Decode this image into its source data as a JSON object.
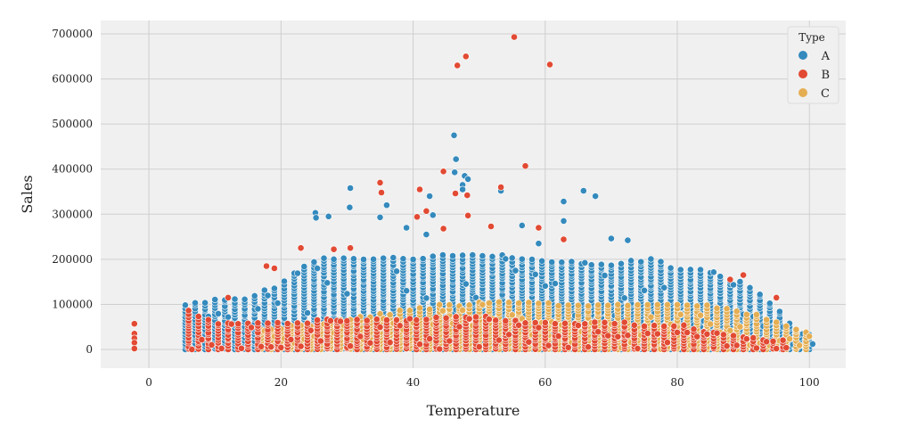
{
  "chart_data": {
    "type": "scatter",
    "xlabel": "Temperature",
    "ylabel": "Sales",
    "xlim": [
      -7.3,
      105.5
    ],
    "ylim": [
      -41500,
      729700
    ],
    "xticks": [
      0,
      20,
      40,
      60,
      80,
      100
    ],
    "xtick_labels": [
      "0",
      "20",
      "40",
      "60",
      "80",
      "100"
    ],
    "yticks": [
      0,
      100000,
      200000,
      300000,
      400000,
      500000,
      600000,
      700000
    ],
    "ytick_labels": [
      "0",
      "100000",
      "200000",
      "300000",
      "400000",
      "500000",
      "600000",
      "700000"
    ],
    "grid": true,
    "legend": {
      "title": "Type",
      "placement": "top-right"
    },
    "series": [
      {
        "name": "A",
        "color": "#348ABD",
        "column_step": 1.5,
        "envelope": [
          [
            5.5,
            100000
          ],
          [
            10,
            115000
          ],
          [
            15,
            110000
          ],
          [
            20,
            150000
          ],
          [
            25,
            200000
          ],
          [
            30,
            205000
          ],
          [
            40,
            205000
          ],
          [
            50,
            215000
          ],
          [
            60,
            200000
          ],
          [
            70,
            190000
          ],
          [
            76,
            205000
          ],
          [
            80,
            180000
          ],
          [
            85,
            175000
          ],
          [
            90,
            150000
          ],
          [
            95,
            100000
          ],
          [
            98,
            40000
          ],
          [
            100,
            35000
          ]
        ],
        "outliers": [
          [
            46.2,
            475000
          ],
          [
            46.5,
            422000
          ],
          [
            46.3,
            393000
          ],
          [
            47.8,
            385000
          ],
          [
            48.3,
            378000
          ],
          [
            47.5,
            365000
          ],
          [
            47.5,
            355000
          ],
          [
            53.3,
            352000
          ],
          [
            65.8,
            352000
          ],
          [
            67.6,
            340000
          ],
          [
            42.5,
            340000
          ],
          [
            30.5,
            358000
          ],
          [
            30.4,
            315000
          ],
          [
            25.2,
            303000
          ],
          [
            25.3,
            292000
          ],
          [
            27.2,
            295000
          ],
          [
            35,
            293000
          ],
          [
            43,
            298000
          ],
          [
            36,
            320000
          ],
          [
            62.8,
            328000
          ],
          [
            62.8,
            285000
          ],
          [
            70,
            246000
          ],
          [
            72.5,
            242000
          ],
          [
            56.5,
            275000
          ],
          [
            39,
            270000
          ],
          [
            59,
            235000
          ],
          [
            42,
            255000
          ]
        ]
      },
      {
        "name": "C",
        "color": "#E5AE53",
        "column_step": 1.5,
        "envelope": [
          [
            17,
            50000
          ],
          [
            25,
            55000
          ],
          [
            35,
            80000
          ],
          [
            45,
            100000
          ],
          [
            55,
            110000
          ],
          [
            65,
            100000
          ],
          [
            75,
            100000
          ],
          [
            85,
            100000
          ],
          [
            92,
            80000
          ],
          [
            97,
            50000
          ],
          [
            100,
            40000
          ]
        ],
        "outliers": []
      },
      {
        "name": "B",
        "color": "#E24A33",
        "column_step": 1.5,
        "envelope": [
          [
            6,
            85000
          ],
          [
            10,
            60000
          ],
          [
            20,
            60000
          ],
          [
            30,
            70000
          ],
          [
            40,
            70000
          ],
          [
            50,
            75000
          ],
          [
            60,
            60000
          ],
          [
            70,
            60000
          ],
          [
            80,
            55000
          ],
          [
            85,
            40000
          ],
          [
            90,
            30000
          ],
          [
            96,
            20000
          ]
        ],
        "outliers": [
          [
            55.3,
            693000
          ],
          [
            48,
            650000
          ],
          [
            46.7,
            630000
          ],
          [
            60.7,
            632000
          ],
          [
            57,
            407000
          ],
          [
            44.6,
            395000
          ],
          [
            35,
            370000
          ],
          [
            41,
            355000
          ],
          [
            53.3,
            360000
          ],
          [
            35.2,
            348000
          ],
          [
            46.4,
            346000
          ],
          [
            48.2,
            342000
          ],
          [
            40.6,
            294000
          ],
          [
            48.3,
            297000
          ],
          [
            42,
            307000
          ],
          [
            59,
            270000
          ],
          [
            51.8,
            273000
          ],
          [
            44.6,
            268000
          ],
          [
            62.8,
            244000
          ],
          [
            23,
            225000
          ],
          [
            17.8,
            185000
          ],
          [
            19,
            180000
          ],
          [
            28,
            222000
          ],
          [
            30.5,
            225000
          ],
          [
            -2.2,
            57000
          ],
          [
            -2.2,
            35000
          ],
          [
            -2.2,
            25000
          ],
          [
            -2.2,
            15000
          ],
          [
            -2.2,
            2000
          ],
          [
            12,
            115000
          ],
          [
            88,
            155000
          ],
          [
            95,
            115000
          ],
          [
            90,
            165000
          ]
        ]
      }
    ]
  }
}
